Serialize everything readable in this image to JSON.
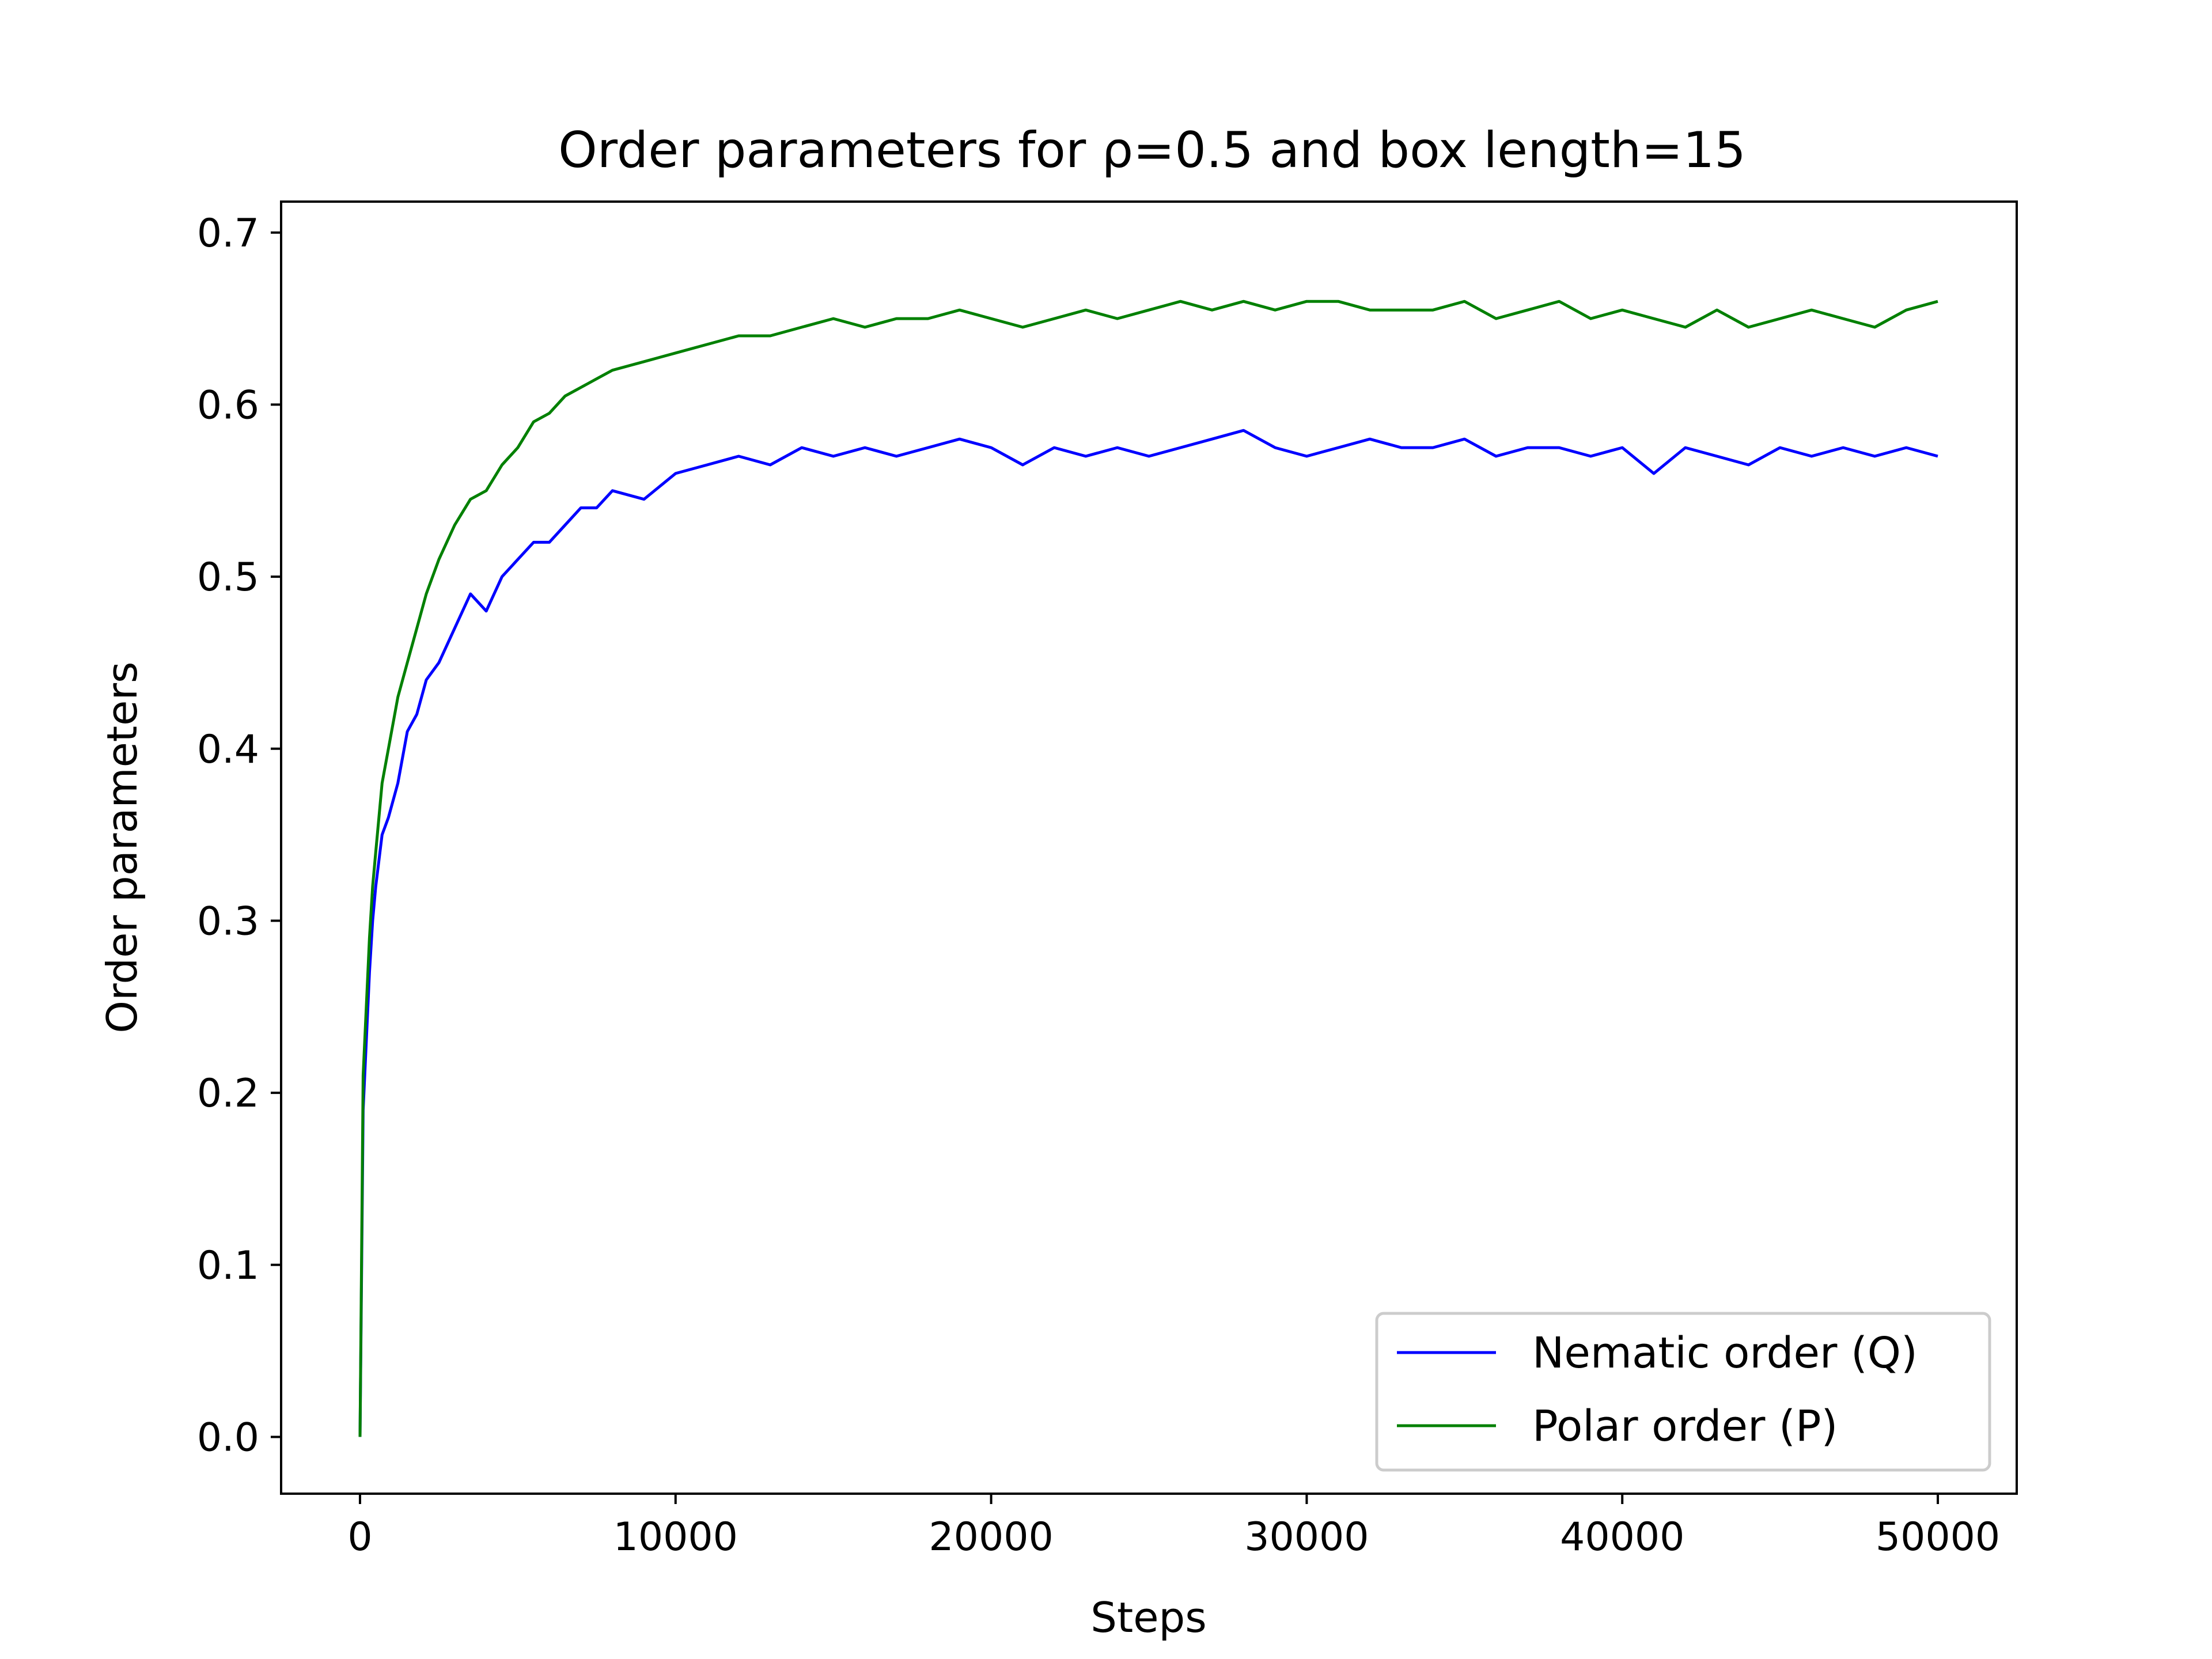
{
  "chart_data": {
    "type": "line",
    "title": "Order parameters for ρ=0.5 and box length=15",
    "xlabel": "Steps",
    "ylabel": "Order parameters",
    "xlim": [
      -2500,
      52500
    ],
    "ylim": [
      -0.033,
      0.718
    ],
    "xticks": [
      0,
      10000,
      20000,
      30000,
      40000,
      50000
    ],
    "xtick_labels": [
      "0",
      "10000",
      "20000",
      "30000",
      "40000",
      "50000"
    ],
    "yticks": [
      0.0,
      0.1,
      0.2,
      0.3,
      0.4,
      0.5,
      0.6,
      0.7
    ],
    "ytick_labels": [
      "0.0",
      "0.1",
      "0.2",
      "0.3",
      "0.4",
      "0.5",
      "0.6",
      "0.7"
    ],
    "grid": false,
    "legend_position": "lower-right",
    "series": [
      {
        "name": "Nematic order (Q)",
        "color": "#0000ff",
        "x": [
          0,
          100,
          200,
          300,
          400,
          500,
          700,
          900,
          1200,
          1500,
          1800,
          2100,
          2500,
          3000,
          3500,
          4000,
          4500,
          5000,
          5500,
          6000,
          6500,
          7000,
          7500,
          8000,
          9000,
          10000,
          11000,
          12000,
          13000,
          14000,
          15000,
          16000,
          17000,
          18000,
          19000,
          20000,
          21000,
          22000,
          23000,
          24000,
          25000,
          26000,
          27000,
          28000,
          29000,
          30000,
          31000,
          32000,
          33000,
          34000,
          35000,
          36000,
          37000,
          38000,
          39000,
          40000,
          41000,
          42000,
          43000,
          44000,
          45000,
          46000,
          47000,
          48000,
          49000,
          50000
        ],
        "y": [
          0.0,
          0.19,
          0.23,
          0.27,
          0.3,
          0.32,
          0.35,
          0.36,
          0.38,
          0.41,
          0.42,
          0.44,
          0.45,
          0.47,
          0.49,
          0.48,
          0.5,
          0.51,
          0.52,
          0.52,
          0.53,
          0.54,
          0.54,
          0.55,
          0.545,
          0.56,
          0.565,
          0.57,
          0.565,
          0.575,
          0.57,
          0.575,
          0.57,
          0.575,
          0.58,
          0.575,
          0.565,
          0.575,
          0.57,
          0.575,
          0.57,
          0.575,
          0.58,
          0.585,
          0.575,
          0.57,
          0.575,
          0.58,
          0.575,
          0.575,
          0.58,
          0.57,
          0.575,
          0.575,
          0.57,
          0.575,
          0.56,
          0.575,
          0.57,
          0.565,
          0.575,
          0.57,
          0.575,
          0.57,
          0.575,
          0.57
        ]
      },
      {
        "name": "Polar order (P)",
        "color": "#008000",
        "x": [
          0,
          100,
          200,
          300,
          400,
          500,
          700,
          900,
          1200,
          1500,
          1800,
          2100,
          2500,
          3000,
          3500,
          4000,
          4500,
          5000,
          5500,
          6000,
          6500,
          7000,
          7500,
          8000,
          9000,
          10000,
          11000,
          12000,
          13000,
          14000,
          15000,
          16000,
          17000,
          18000,
          19000,
          20000,
          21000,
          22000,
          23000,
          24000,
          25000,
          26000,
          27000,
          28000,
          29000,
          30000,
          31000,
          32000,
          33000,
          34000,
          35000,
          36000,
          37000,
          38000,
          39000,
          40000,
          41000,
          42000,
          43000,
          44000,
          45000,
          46000,
          47000,
          48000,
          49000,
          50000
        ],
        "y": [
          0.0,
          0.21,
          0.25,
          0.29,
          0.32,
          0.34,
          0.38,
          0.4,
          0.43,
          0.45,
          0.47,
          0.49,
          0.51,
          0.53,
          0.545,
          0.55,
          0.565,
          0.575,
          0.59,
          0.595,
          0.605,
          0.61,
          0.615,
          0.62,
          0.625,
          0.63,
          0.635,
          0.64,
          0.64,
          0.645,
          0.65,
          0.645,
          0.65,
          0.65,
          0.655,
          0.65,
          0.645,
          0.65,
          0.655,
          0.65,
          0.655,
          0.66,
          0.655,
          0.66,
          0.655,
          0.66,
          0.66,
          0.655,
          0.655,
          0.655,
          0.66,
          0.65,
          0.655,
          0.66,
          0.65,
          0.655,
          0.65,
          0.645,
          0.655,
          0.645,
          0.65,
          0.655,
          0.65,
          0.645,
          0.655,
          0.66
        ]
      }
    ]
  }
}
